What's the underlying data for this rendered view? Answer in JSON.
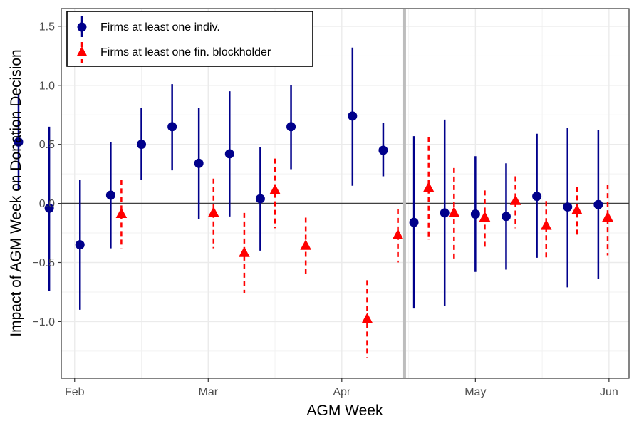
{
  "chart_data": {
    "type": "scatter",
    "title": "",
    "xlabel": "AGM Week",
    "ylabel": "Impact of AGM Week on Donation Decision",
    "ylim": [
      -1.48,
      1.65
    ],
    "xlim": [
      1.9,
      6.15
    ],
    "x_unit": "month index (Jan 1 = 1.0, Feb 1 = 2.0)",
    "x_ticks": [
      2,
      3,
      4,
      5,
      6
    ],
    "x_tick_labels": [
      "Feb",
      "Mar",
      "Apr",
      "May",
      "Jun"
    ],
    "y_ticks": [
      -1.0,
      -0.5,
      0.0,
      0.5,
      1.0,
      1.5
    ],
    "y_tick_labels": [
      "−1.0",
      "−0.5",
      "0.0",
      "0.5",
      "1.0",
      "1.5"
    ],
    "grid": true,
    "reference_line_y": 0,
    "reference_line_x": 4.47,
    "legend_position": "top-left",
    "series": [
      {
        "name": "Firms at least one indiv.",
        "color": "#00008b",
        "marker": "circle",
        "line_style": "solid",
        "points": [
          {
            "x": 1.58,
            "y": 0.52,
            "lo": 0.12,
            "hi": 0.92
          },
          {
            "x": 1.81,
            "y": -0.04,
            "lo": -0.74,
            "hi": 0.65
          },
          {
            "x": 2.04,
            "y": -0.35,
            "lo": -0.9,
            "hi": 0.2
          },
          {
            "x": 2.27,
            "y": 0.07,
            "lo": -0.38,
            "hi": 0.52
          },
          {
            "x": 2.5,
            "y": 0.5,
            "lo": 0.2,
            "hi": 0.81
          },
          {
            "x": 2.73,
            "y": 0.65,
            "lo": 0.28,
            "hi": 1.01
          },
          {
            "x": 2.93,
            "y": 0.34,
            "lo": -0.13,
            "hi": 0.81
          },
          {
            "x": 3.16,
            "y": 0.42,
            "lo": -0.11,
            "hi": 0.95
          },
          {
            "x": 3.39,
            "y": 0.04,
            "lo": -0.4,
            "hi": 0.48
          },
          {
            "x": 3.62,
            "y": 0.65,
            "lo": 0.29,
            "hi": 1.0
          },
          {
            "x": 4.08,
            "y": 0.74,
            "lo": 0.15,
            "hi": 1.32
          },
          {
            "x": 4.31,
            "y": 0.45,
            "lo": 0.23,
            "hi": 0.68
          },
          {
            "x": 4.54,
            "y": -0.16,
            "lo": -0.89,
            "hi": 0.57
          },
          {
            "x": 4.77,
            "y": -0.08,
            "lo": -0.87,
            "hi": 0.71
          },
          {
            "x": 5.0,
            "y": -0.09,
            "lo": -0.58,
            "hi": 0.4
          },
          {
            "x": 5.23,
            "y": -0.11,
            "lo": -0.56,
            "hi": 0.34
          },
          {
            "x": 5.46,
            "y": 0.06,
            "lo": -0.46,
            "hi": 0.59
          },
          {
            "x": 5.69,
            "y": -0.03,
            "lo": -0.71,
            "hi": 0.64
          },
          {
            "x": 5.92,
            "y": -0.01,
            "lo": -0.64,
            "hi": 0.62
          }
        ]
      },
      {
        "name": "Firms at least one fin. blockholder",
        "color": "#ff0000",
        "marker": "triangle",
        "line_style": "dashed",
        "points": [
          {
            "x": 2.35,
            "y": -0.09,
            "lo": -0.38,
            "hi": 0.2
          },
          {
            "x": 3.04,
            "y": -0.08,
            "lo": -0.38,
            "hi": 0.21
          },
          {
            "x": 3.27,
            "y": -0.42,
            "lo": -0.76,
            "hi": -0.08
          },
          {
            "x": 3.5,
            "y": 0.11,
            "lo": -0.21,
            "hi": 0.38
          },
          {
            "x": 3.73,
            "y": -0.36,
            "lo": -0.61,
            "hi": -0.12
          },
          {
            "x": 4.19,
            "y": -0.98,
            "lo": -1.31,
            "hi": -0.65
          },
          {
            "x": 4.42,
            "y": -0.27,
            "lo": -0.5,
            "hi": -0.05
          },
          {
            "x": 4.65,
            "y": 0.13,
            "lo": -0.31,
            "hi": 0.56
          },
          {
            "x": 4.84,
            "y": -0.08,
            "lo": -0.47,
            "hi": 0.3
          },
          {
            "x": 5.07,
            "y": -0.12,
            "lo": -0.37,
            "hi": 0.11
          },
          {
            "x": 5.3,
            "y": 0.02,
            "lo": -0.21,
            "hi": 0.23
          },
          {
            "x": 5.53,
            "y": -0.19,
            "lo": -0.46,
            "hi": 0.02
          },
          {
            "x": 5.76,
            "y": -0.06,
            "lo": -0.29,
            "hi": 0.14
          },
          {
            "x": 5.99,
            "y": -0.12,
            "lo": -0.44,
            "hi": 0.16
          }
        ]
      }
    ]
  }
}
